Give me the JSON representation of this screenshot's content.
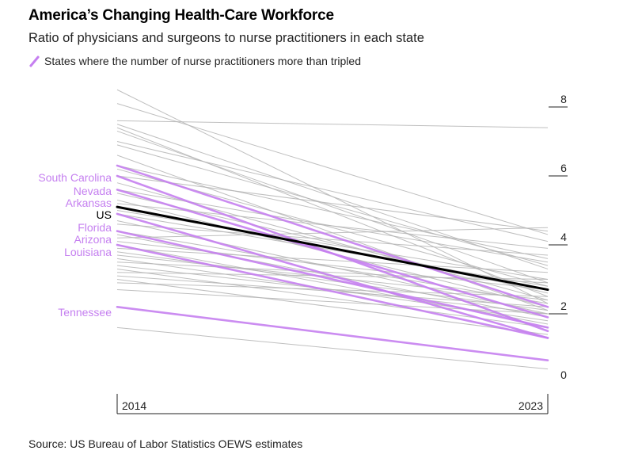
{
  "header": {
    "title": "America’s Changing Health-Care Workforce",
    "subtitle": "Ratio of physicians and surgeons to nurse practitioners in each state",
    "legend_label": "States where the number of nurse practitioners more than tripled"
  },
  "footer": {
    "source": "Source: US Bureau of Labor Statistics OEWS estimates"
  },
  "colors": {
    "highlight": "#c57ff0",
    "gray": "#b4b4b4",
    "us": "#000000",
    "axis": "#222222"
  },
  "chart_data": {
    "type": "line",
    "title": "America’s Changing Health-Care Workforce",
    "subtitle": "Ratio of physicians and surgeons to nurse practitioners in each state",
    "x": [
      "2014",
      "2023"
    ],
    "ylim": [
      0,
      8.5
    ],
    "yticks": [
      0,
      2,
      4,
      6,
      8
    ],
    "us": {
      "name": "US",
      "values": [
        5.1,
        2.7
      ]
    },
    "highlighted": [
      {
        "name": "South Carolina",
        "values": [
          6.3,
          2.2
        ]
      },
      {
        "name": "Nevada",
        "values": [
          6.0,
          1.5
        ]
      },
      {
        "name": "Arkansas",
        "values": [
          5.6,
          1.9
        ]
      },
      {
        "name": "Florida",
        "values": [
          4.9,
          1.3
        ]
      },
      {
        "name": "Arizona",
        "values": [
          4.4,
          1.6
        ]
      },
      {
        "name": "Louisiana",
        "values": [
          4.0,
          1.3
        ]
      },
      {
        "name": "Tennessee",
        "values": [
          2.2,
          0.65
        ]
      }
    ],
    "others": [
      [
        8.5,
        2.3
      ],
      [
        8.1,
        4.3
      ],
      [
        7.6,
        7.4
      ],
      [
        7.5,
        3.3
      ],
      [
        7.4,
        2.5
      ],
      [
        7.3,
        2.9
      ],
      [
        7.0,
        4.1
      ],
      [
        6.9,
        3.4
      ],
      [
        6.6,
        2.1
      ],
      [
        6.3,
        3.6
      ],
      [
        6.2,
        2.8
      ],
      [
        6.0,
        4.4
      ],
      [
        5.8,
        2.4
      ],
      [
        5.6,
        3.5
      ],
      [
        5.5,
        2.6
      ],
      [
        5.3,
        2.2
      ],
      [
        5.2,
        3.9
      ],
      [
        5.0,
        3.0
      ],
      [
        4.9,
        2.8
      ],
      [
        4.7,
        2.0
      ],
      [
        4.6,
        3.7
      ],
      [
        4.4,
        2.3
      ],
      [
        4.3,
        1.9
      ],
      [
        4.2,
        4.5
      ],
      [
        4.1,
        2.7
      ],
      [
        4.0,
        1.7
      ],
      [
        3.9,
        3.2
      ],
      [
        3.8,
        2.1
      ],
      [
        3.7,
        2.4
      ],
      [
        3.6,
        1.8
      ],
      [
        3.5,
        2.9
      ],
      [
        3.4,
        2.0
      ],
      [
        3.3,
        1.6
      ],
      [
        3.2,
        3.0
      ],
      [
        3.1,
        2.2
      ],
      [
        3.0,
        1.4
      ],
      [
        2.9,
        2.5
      ],
      [
        2.7,
        2.0
      ],
      [
        1.6,
        0.4
      ]
    ]
  }
}
